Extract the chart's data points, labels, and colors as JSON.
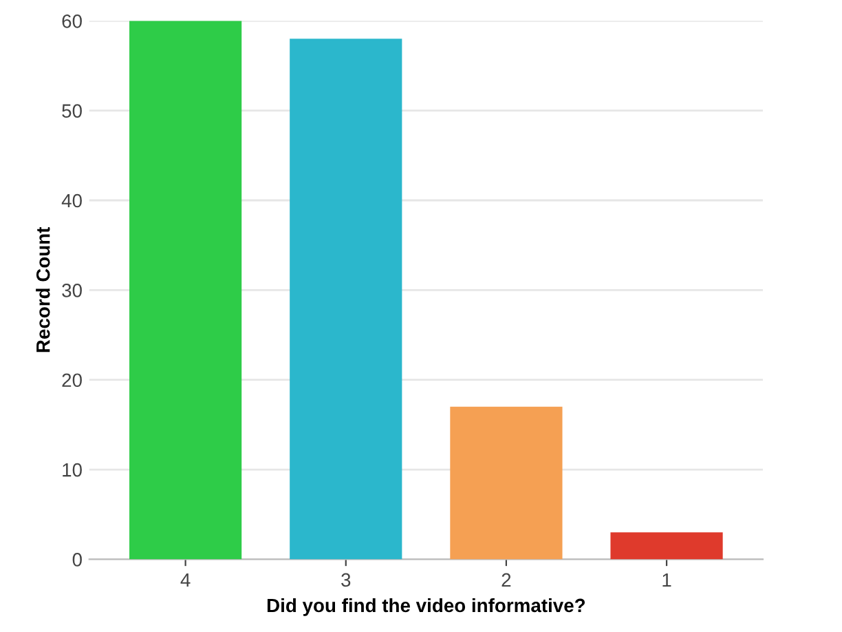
{
  "chart_data": {
    "type": "bar",
    "xlabel": "Did you find the video informative?",
    "ylabel": "Record Count",
    "categories": [
      "4",
      "3",
      "2",
      "1"
    ],
    "values": [
      60,
      58,
      17,
      3
    ],
    "colors": [
      "#2ecc48",
      "#2bb7cc",
      "#f5a053",
      "#df3a2c"
    ],
    "ylim": [
      0,
      60
    ],
    "yticks": [
      0,
      10,
      20,
      30,
      40,
      50,
      60
    ],
    "grid": "y",
    "legend": false
  }
}
